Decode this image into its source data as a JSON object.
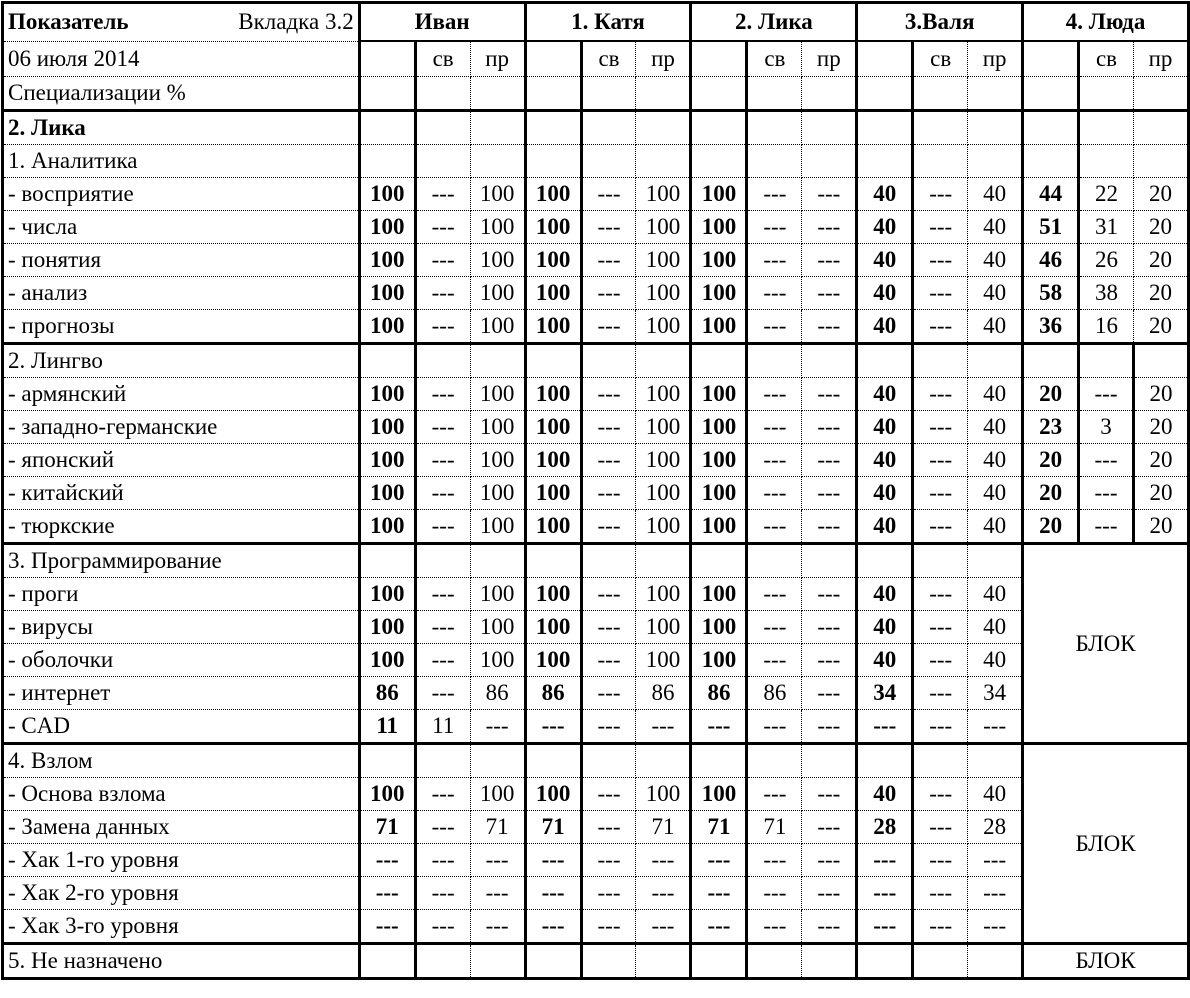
{
  "header": {
    "indicator": "Показатель",
    "tab": "Вкладка 3.2",
    "date": "06 июля 2014",
    "spec": "Специализации %",
    "persons": [
      "Иван",
      "1. Катя",
      "2. Лика",
      "3.Валя",
      "4. Люда"
    ],
    "sub": [
      "св",
      "пр"
    ]
  },
  "title_row": "2. Лика",
  "sections": [
    {
      "title": "1. Аналитика",
      "block": null,
      "rows": [
        {
          "label": "- восприятие",
          "cells": [
            [
              "100",
              "---",
              "100"
            ],
            [
              "100",
              "---",
              "100"
            ],
            [
              "100",
              "---",
              "---"
            ],
            [
              "40",
              "---",
              "40"
            ],
            [
              "44",
              "22",
              "20"
            ]
          ]
        },
        {
          "label": "- числа",
          "cells": [
            [
              "100",
              "---",
              "100"
            ],
            [
              "100",
              "---",
              "100"
            ],
            [
              "100",
              "---",
              "---"
            ],
            [
              "40",
              "---",
              "40"
            ],
            [
              "51",
              "31",
              "20"
            ]
          ]
        },
        {
          "label": "- понятия",
          "cells": [
            [
              "100",
              "---",
              "100"
            ],
            [
              "100",
              "---",
              "100"
            ],
            [
              "100",
              "---",
              "---"
            ],
            [
              "40",
              "---",
              "40"
            ],
            [
              "46",
              "26",
              "20"
            ]
          ]
        },
        {
          "label": "- анализ",
          "cells": [
            [
              "100",
              "---",
              "100"
            ],
            [
              "100",
              "---",
              "100"
            ],
            [
              "100",
              "---",
              "---"
            ],
            [
              "40",
              "---",
              "40"
            ],
            [
              "58",
              "38",
              "20"
            ]
          ]
        },
        {
          "label": "- прогнозы",
          "cells": [
            [
              "100",
              "---",
              "100"
            ],
            [
              "100",
              "---",
              "100"
            ],
            [
              "100",
              "---",
              "---"
            ],
            [
              "40",
              "---",
              "40"
            ],
            [
              "36",
              "16",
              "20"
            ]
          ]
        }
      ]
    },
    {
      "title": "2. Лингво",
      "block": null,
      "rows": [
        {
          "label": "- армянский",
          "cells": [
            [
              "100",
              "---",
              "100"
            ],
            [
              "100",
              "---",
              "100"
            ],
            [
              "100",
              "---",
              "---"
            ],
            [
              "40",
              "---",
              "40"
            ],
            [
              "20",
              "---",
              "20"
            ]
          ]
        },
        {
          "label": "- западно-германские",
          "cells": [
            [
              "100",
              "---",
              "100"
            ],
            [
              "100",
              "---",
              "100"
            ],
            [
              "100",
              "---",
              "---"
            ],
            [
              "40",
              "---",
              "40"
            ],
            [
              "23",
              "3",
              "20"
            ]
          ]
        },
        {
          "label": "- японский",
          "cells": [
            [
              "100",
              "---",
              "100"
            ],
            [
              "100",
              "---",
              "100"
            ],
            [
              "100",
              "---",
              "---"
            ],
            [
              "40",
              "---",
              "40"
            ],
            [
              "20",
              "---",
              "20"
            ]
          ]
        },
        {
          "label": "- китайский",
          "cells": [
            [
              "100",
              "---",
              "100"
            ],
            [
              "100",
              "---",
              "100"
            ],
            [
              "100",
              "---",
              "---"
            ],
            [
              "40",
              "---",
              "40"
            ],
            [
              "20",
              "---",
              "20"
            ]
          ]
        },
        {
          "label": "- тюркские",
          "cells": [
            [
              "100",
              "---",
              "100"
            ],
            [
              "100",
              "---",
              "100"
            ],
            [
              "100",
              "---",
              "---"
            ],
            [
              "40",
              "---",
              "40"
            ],
            [
              "20",
              "---",
              "20"
            ]
          ]
        }
      ]
    },
    {
      "title": "3. Программирование",
      "block": "БЛОК",
      "rows": [
        {
          "label": "- проги",
          "cells": [
            [
              "100",
              "---",
              "100"
            ],
            [
              "100",
              "---",
              "100"
            ],
            [
              "100",
              "---",
              "---"
            ],
            [
              "40",
              "---",
              "40"
            ]
          ]
        },
        {
          "label": "- вирусы",
          "cells": [
            [
              "100",
              "---",
              "100"
            ],
            [
              "100",
              "---",
              "100"
            ],
            [
              "100",
              "---",
              "---"
            ],
            [
              "40",
              "---",
              "40"
            ]
          ]
        },
        {
          "label": "- оболочки",
          "cells": [
            [
              "100",
              "---",
              "100"
            ],
            [
              "100",
              "---",
              "100"
            ],
            [
              "100",
              "---",
              "---"
            ],
            [
              "40",
              "---",
              "40"
            ]
          ]
        },
        {
          "label": "- интернет",
          "cells": [
            [
              "86",
              "---",
              "86"
            ],
            [
              "86",
              "---",
              "86"
            ],
            [
              "86",
              "86",
              "---"
            ],
            [
              "34",
              "---",
              "34"
            ]
          ]
        },
        {
          "label": "- CAD",
          "cells": [
            [
              "11",
              "11",
              "---"
            ],
            [
              "---",
              "---",
              "---"
            ],
            [
              "---",
              "---",
              "---"
            ],
            [
              "---",
              "---",
              "---"
            ]
          ]
        }
      ]
    },
    {
      "title": "4. Взлом",
      "block": "БЛОК",
      "rows": [
        {
          "label": "- Основа взлома",
          "cells": [
            [
              "100",
              "---",
              "100"
            ],
            [
              "100",
              "---",
              "100"
            ],
            [
              "100",
              "---",
              "---"
            ],
            [
              "40",
              "---",
              "40"
            ]
          ]
        },
        {
          "label": "- Замена данных",
          "cells": [
            [
              "71",
              "---",
              "71"
            ],
            [
              "71",
              "---",
              "71"
            ],
            [
              "71",
              "71",
              "---"
            ],
            [
              "28",
              "---",
              "28"
            ]
          ]
        },
        {
          "label": "- Хак 1-го уровня",
          "cells": [
            [
              "---",
              "---",
              "---"
            ],
            [
              "---",
              "---",
              "---"
            ],
            [
              "---",
              "---",
              "---"
            ],
            [
              "---",
              "---",
              "---"
            ]
          ]
        },
        {
          "label": "- Хак 2-го уровня",
          "cells": [
            [
              "---",
              "---",
              "---"
            ],
            [
              "---",
              "---",
              "---"
            ],
            [
              "---",
              "---",
              "---"
            ],
            [
              "---",
              "---",
              "---"
            ]
          ]
        },
        {
          "label": "- Хак 3-го уровня",
          "cells": [
            [
              "---",
              "---",
              "---"
            ],
            [
              "---",
              "---",
              "---"
            ],
            [
              "---",
              "---",
              "---"
            ],
            [
              "---",
              "---",
              "---"
            ]
          ]
        }
      ]
    },
    {
      "title": "5. Не назначено",
      "block": "БЛОК",
      "rows": []
    }
  ]
}
